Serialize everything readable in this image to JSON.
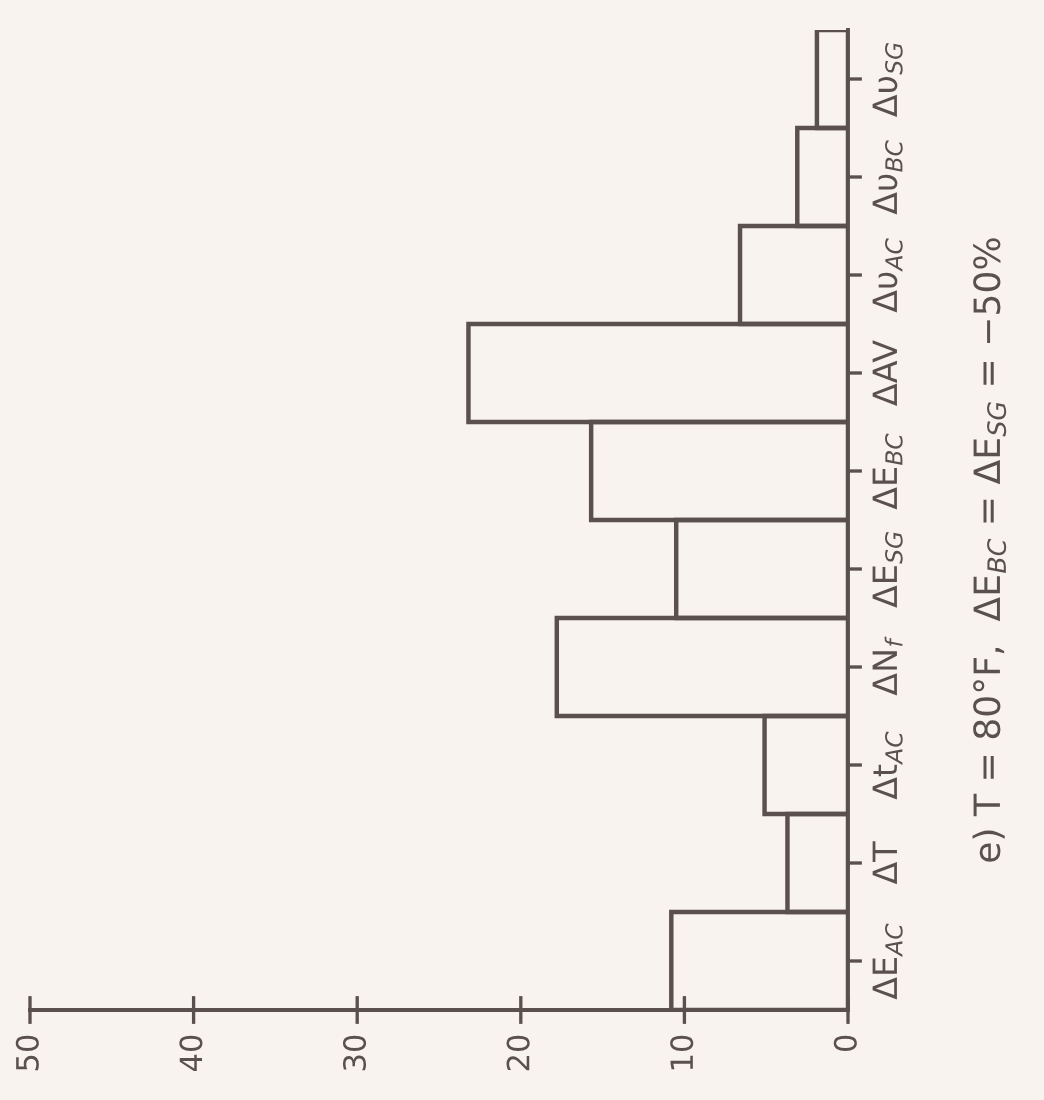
{
  "chart_data": {
    "type": "bar",
    "orientation": "horizontal",
    "title": "e) T = 80°F,  ΔE$_{BC}$ = ΔE$_{SG}$ = −50%",
    "categories": [
      "Δυ$_{SG}$",
      "Δυ$_{BC}$",
      "Δυ$_{AC}$",
      "ΔAV",
      "ΔE$_{BC}$",
      "ΔE$_{SG}$",
      "ΔN$_{f}$",
      "Δt$_{AC}$",
      "ΔT",
      "ΔE$_{AC}$"
    ],
    "values": [
      1.9,
      3.1,
      6.6,
      23.2,
      15.7,
      10.5,
      17.8,
      5.1,
      3.7,
      10.8
    ],
    "color": "#5a5050",
    "xlim": [
      50,
      0
    ],
    "xticks": [
      50,
      40,
      30,
      20,
      10,
      0
    ],
    "grid": false
  }
}
